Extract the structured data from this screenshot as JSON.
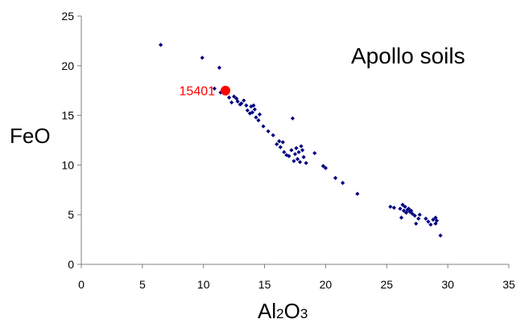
{
  "chart_data": {
    "type": "scatter",
    "title": "Apollo soils",
    "xlabel": {
      "parts": [
        {
          "text": "Al",
          "sub": false
        },
        {
          "text": "2",
          "sub": true
        },
        {
          "text": "O",
          "sub": false
        },
        {
          "text": "3",
          "sub": true
        }
      ]
    },
    "ylabel": "FeO",
    "xlim": [
      0,
      35
    ],
    "ylim": [
      0,
      25
    ],
    "xticks": [
      "0",
      "5",
      "10",
      "15",
      "20",
      "25",
      "30",
      "35"
    ],
    "yticks": [
      "0",
      "5",
      "10",
      "15",
      "20",
      "25"
    ],
    "grid": false,
    "legend": "none",
    "colors": {
      "series": "#000080",
      "highlight": "#ff0000"
    },
    "series": [
      {
        "points": [
          [
            6.5,
            22.1
          ],
          [
            9.9,
            20.8
          ],
          [
            11.3,
            19.8
          ],
          [
            10.9,
            17.7
          ],
          [
            11.4,
            17.3
          ],
          [
            11.9,
            17.2
          ],
          [
            12.1,
            16.8
          ],
          [
            12.3,
            16.3
          ],
          [
            12.5,
            16.9
          ],
          [
            12.7,
            16.7
          ],
          [
            12.8,
            16.4
          ],
          [
            13.0,
            16.1
          ],
          [
            13.1,
            16.2
          ],
          [
            13.3,
            16.5
          ],
          [
            13.5,
            16.0
          ],
          [
            13.6,
            15.5
          ],
          [
            13.8,
            15.2
          ],
          [
            13.9,
            15.9
          ],
          [
            14.0,
            15.3
          ],
          [
            14.1,
            16.0
          ],
          [
            14.2,
            15.6
          ],
          [
            14.3,
            14.8
          ],
          [
            14.5,
            14.5
          ],
          [
            14.6,
            15.1
          ],
          [
            14.9,
            13.9
          ],
          [
            15.3,
            13.4
          ],
          [
            15.7,
            13.0
          ],
          [
            16.0,
            12.1
          ],
          [
            16.2,
            12.4
          ],
          [
            16.3,
            11.8
          ],
          [
            16.5,
            12.3
          ],
          [
            16.6,
            11.3
          ],
          [
            16.8,
            11.0
          ],
          [
            17.0,
            10.9
          ],
          [
            17.2,
            11.5
          ],
          [
            17.3,
            14.7
          ],
          [
            17.4,
            10.4
          ],
          [
            17.5,
            11.1
          ],
          [
            17.6,
            11.7
          ],
          [
            17.7,
            10.6
          ],
          [
            17.8,
            11.3
          ],
          [
            17.9,
            10.3
          ],
          [
            18.0,
            11.9
          ],
          [
            18.1,
            11.5
          ],
          [
            18.2,
            10.8
          ],
          [
            18.4,
            10.2
          ],
          [
            19.1,
            11.2
          ],
          [
            19.8,
            9.9
          ],
          [
            20.0,
            9.7
          ],
          [
            20.8,
            8.7
          ],
          [
            21.4,
            8.2
          ],
          [
            22.6,
            7.1
          ],
          [
            25.3,
            5.8
          ],
          [
            25.6,
            5.7
          ],
          [
            26.1,
            5.6
          ],
          [
            26.2,
            4.7
          ],
          [
            26.3,
            6.0
          ],
          [
            26.4,
            5.4
          ],
          [
            26.5,
            5.8
          ],
          [
            26.6,
            5.2
          ],
          [
            26.7,
            5.5
          ],
          [
            26.8,
            5.6
          ],
          [
            26.9,
            5.3
          ],
          [
            27.0,
            5.4
          ],
          [
            27.1,
            5.1
          ],
          [
            27.3,
            4.9
          ],
          [
            27.4,
            4.1
          ],
          [
            27.6,
            4.6
          ],
          [
            27.7,
            5.0
          ],
          [
            28.2,
            4.6
          ],
          [
            28.4,
            4.3
          ],
          [
            28.6,
            4.0
          ],
          [
            28.8,
            4.5
          ],
          [
            29.0,
            4.1
          ],
          [
            29.1,
            4.4
          ],
          [
            29.0,
            4.7
          ],
          [
            29.4,
            2.9
          ]
        ]
      }
    ],
    "highlight": {
      "label": "15401",
      "x": 11.8,
      "y": 17.5
    }
  }
}
